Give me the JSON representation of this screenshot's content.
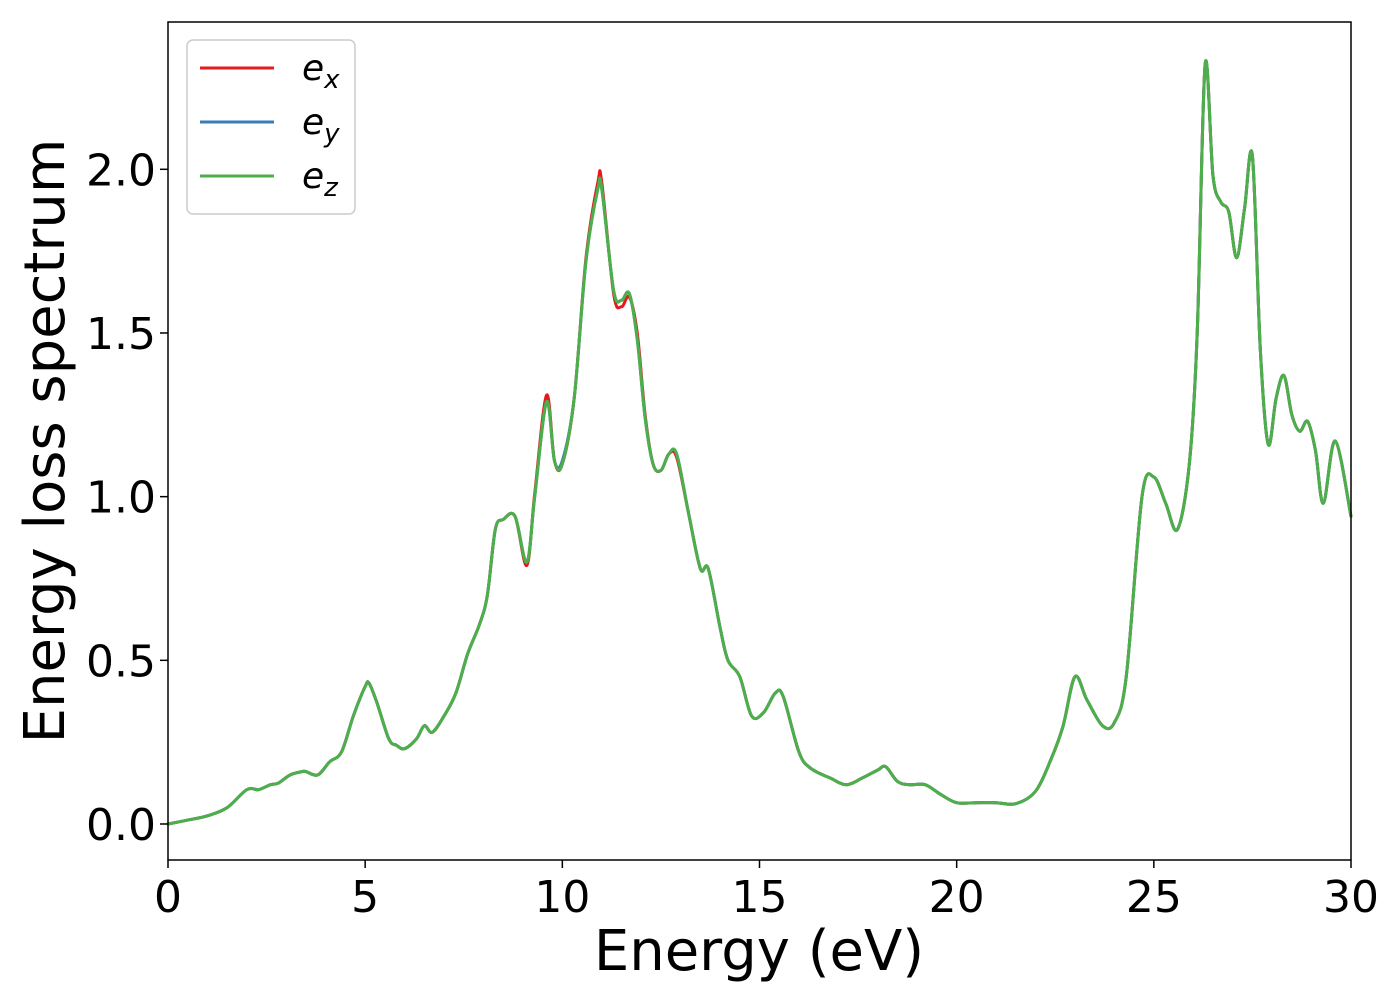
{
  "chart_data": {
    "type": "line",
    "title": "",
    "xlabel": "Energy (eV)",
    "ylabel": "Energy loss spectrum",
    "xlim": [
      0,
      30
    ],
    "ylim": [
      -0.11,
      2.45
    ],
    "xticks": [
      0,
      5,
      10,
      15,
      20,
      25,
      30
    ],
    "yticks": [
      0.0,
      0.5,
      1.0,
      1.5,
      2.0
    ],
    "xtick_labels": [
      "0",
      "5",
      "10",
      "15",
      "20",
      "25",
      "30"
    ],
    "ytick_labels": [
      "0.0",
      "0.5",
      "1.0",
      "1.5",
      "2.0"
    ],
    "grid": false,
    "legend_position": "top-left",
    "x": [
      0,
      0.5,
      1.0,
      1.5,
      2.0,
      2.3,
      2.6,
      2.8,
      3.1,
      3.4,
      3.5,
      3.8,
      4.1,
      4.4,
      4.7,
      5.0,
      5.1,
      5.3,
      5.6,
      5.8,
      6.0,
      6.3,
      6.5,
      6.7,
      7.0,
      7.3,
      7.6,
      7.9,
      8.1,
      8.3,
      8.5,
      8.8,
      9.1,
      9.3,
      9.6,
      9.8,
      10.0,
      10.3,
      10.6,
      10.9,
      11.0,
      11.3,
      11.5,
      11.7,
      11.9,
      12.1,
      12.3,
      12.5,
      12.7,
      12.9,
      13.2,
      13.5,
      13.7,
      14.0,
      14.2,
      14.5,
      14.8,
      15.1,
      15.4,
      15.6,
      16.0,
      16.3,
      16.8,
      17.2,
      17.6,
      18.0,
      18.2,
      18.5,
      18.8,
      19.2,
      19.6,
      20.0,
      20.5,
      21.0,
      21.5,
      22.0,
      22.4,
      22.7,
      23.0,
      23.3,
      23.7,
      24.0,
      24.3,
      24.7,
      25.0,
      25.3,
      25.6,
      25.9,
      26.1,
      26.3,
      26.5,
      26.7,
      26.9,
      27.1,
      27.3,
      27.5,
      27.7,
      27.9,
      28.1,
      28.3,
      28.5,
      28.7,
      28.9,
      29.1,
      29.3,
      29.6,
      30.0
    ],
    "series": [
      {
        "name": "e_x",
        "color": "#e41a1c",
        "values": [
          0.0,
          0.012,
          0.025,
          0.05,
          0.105,
          0.105,
          0.12,
          0.125,
          0.15,
          0.16,
          0.16,
          0.15,
          0.19,
          0.22,
          0.33,
          0.42,
          0.43,
          0.37,
          0.26,
          0.24,
          0.23,
          0.26,
          0.3,
          0.28,
          0.33,
          0.4,
          0.52,
          0.61,
          0.7,
          0.9,
          0.93,
          0.94,
          0.79,
          1.01,
          1.31,
          1.11,
          1.1,
          1.3,
          1.73,
          1.96,
          1.96,
          1.62,
          1.58,
          1.61,
          1.5,
          1.25,
          1.1,
          1.08,
          1.13,
          1.12,
          0.95,
          0.78,
          0.78,
          0.6,
          0.5,
          0.45,
          0.33,
          0.34,
          0.4,
          0.39,
          0.22,
          0.17,
          0.14,
          0.12,
          0.14,
          0.165,
          0.175,
          0.13,
          0.12,
          0.12,
          0.09,
          0.065,
          0.065,
          0.065,
          0.062,
          0.1,
          0.2,
          0.3,
          0.45,
          0.38,
          0.3,
          0.31,
          0.45,
          1.0,
          1.06,
          0.98,
          0.9,
          1.1,
          1.5,
          2.32,
          1.98,
          1.9,
          1.87,
          1.73,
          1.88,
          2.04,
          1.45,
          1.16,
          1.3,
          1.37,
          1.25,
          1.2,
          1.23,
          1.14,
          0.98,
          1.17,
          0.94
        ]
      },
      {
        "name": "e_y",
        "color": "#377eb8",
        "values": [
          0.0,
          0.012,
          0.025,
          0.05,
          0.105,
          0.105,
          0.12,
          0.125,
          0.15,
          0.16,
          0.16,
          0.15,
          0.19,
          0.22,
          0.33,
          0.42,
          0.43,
          0.37,
          0.26,
          0.24,
          0.23,
          0.26,
          0.3,
          0.28,
          0.33,
          0.4,
          0.52,
          0.61,
          0.7,
          0.9,
          0.93,
          0.94,
          0.8,
          1.0,
          1.29,
          1.11,
          1.11,
          1.3,
          1.72,
          1.94,
          1.94,
          1.63,
          1.6,
          1.62,
          1.48,
          1.24,
          1.1,
          1.08,
          1.13,
          1.13,
          0.95,
          0.78,
          0.78,
          0.6,
          0.5,
          0.45,
          0.33,
          0.34,
          0.4,
          0.39,
          0.22,
          0.17,
          0.14,
          0.12,
          0.14,
          0.165,
          0.175,
          0.13,
          0.12,
          0.12,
          0.09,
          0.065,
          0.065,
          0.065,
          0.062,
          0.1,
          0.2,
          0.3,
          0.45,
          0.38,
          0.3,
          0.31,
          0.45,
          1.0,
          1.06,
          0.98,
          0.9,
          1.1,
          1.5,
          2.32,
          1.98,
          1.9,
          1.87,
          1.73,
          1.88,
          2.04,
          1.45,
          1.16,
          1.3,
          1.37,
          1.25,
          1.2,
          1.23,
          1.14,
          0.98,
          1.17,
          0.94
        ]
      },
      {
        "name": "e_z",
        "color": "#4daf4a",
        "values": [
          0.0,
          0.012,
          0.025,
          0.05,
          0.105,
          0.105,
          0.12,
          0.125,
          0.15,
          0.16,
          0.16,
          0.15,
          0.19,
          0.22,
          0.33,
          0.42,
          0.43,
          0.37,
          0.26,
          0.24,
          0.23,
          0.26,
          0.3,
          0.28,
          0.33,
          0.4,
          0.52,
          0.61,
          0.7,
          0.9,
          0.93,
          0.94,
          0.8,
          1.0,
          1.29,
          1.11,
          1.1,
          1.3,
          1.72,
          1.94,
          1.94,
          1.63,
          1.6,
          1.62,
          1.48,
          1.24,
          1.1,
          1.08,
          1.13,
          1.13,
          0.95,
          0.78,
          0.78,
          0.6,
          0.5,
          0.45,
          0.33,
          0.34,
          0.4,
          0.39,
          0.22,
          0.17,
          0.14,
          0.12,
          0.14,
          0.165,
          0.175,
          0.13,
          0.12,
          0.12,
          0.09,
          0.065,
          0.065,
          0.065,
          0.062,
          0.1,
          0.2,
          0.3,
          0.45,
          0.38,
          0.3,
          0.31,
          0.45,
          1.0,
          1.06,
          0.98,
          0.9,
          1.1,
          1.5,
          2.32,
          1.98,
          1.9,
          1.87,
          1.73,
          1.88,
          2.04,
          1.45,
          1.16,
          1.3,
          1.37,
          1.25,
          1.2,
          1.23,
          1.14,
          0.98,
          1.17,
          0.94
        ]
      }
    ],
    "legend": [
      {
        "base": "e",
        "sub": "x",
        "color": "#e41a1c"
      },
      {
        "base": "e",
        "sub": "y",
        "color": "#377eb8"
      },
      {
        "base": "e",
        "sub": "z",
        "color": "#4daf4a"
      }
    ]
  }
}
